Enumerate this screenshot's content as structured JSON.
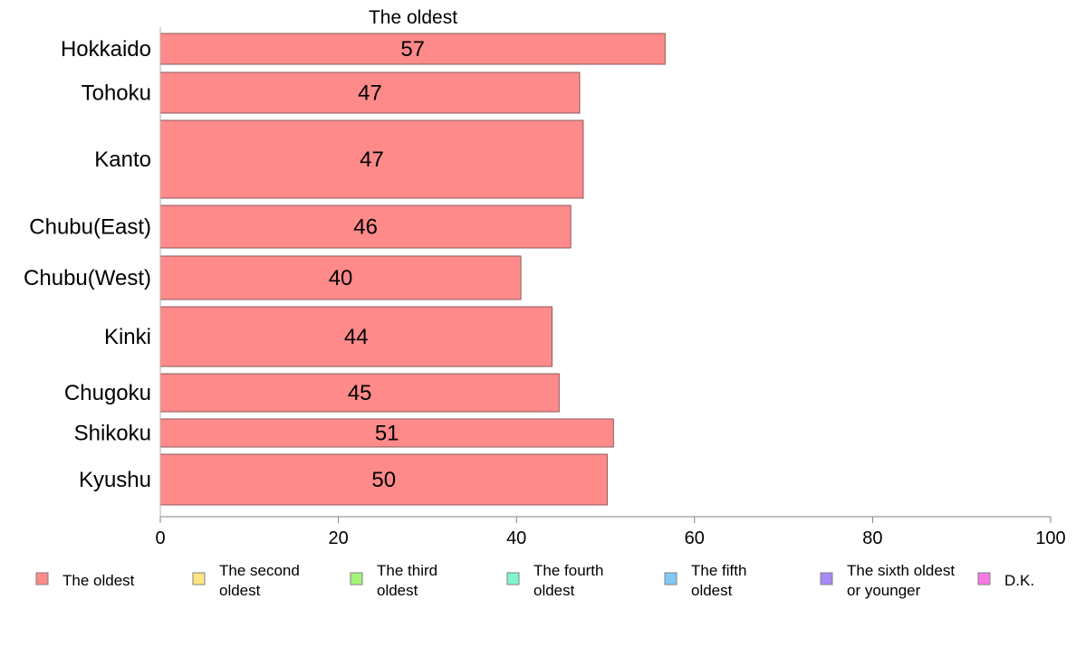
{
  "chart_data": {
    "type": "bar",
    "orientation": "horizontal",
    "categories": [
      "Hokkaido",
      "Tohoku",
      "Kanto",
      "Chubu(East)",
      "Chubu(West)",
      "Kinki",
      "Chugoku",
      "Shikoku",
      "Kyushu"
    ],
    "series": [
      {
        "name": "The oldest",
        "color": "#ff8a8a",
        "values": [
          56.7,
          47.1,
          47.5,
          46.1,
          40.5,
          44.0,
          44.8,
          50.9,
          50.2
        ],
        "labels": [
          "57",
          "47",
          "47",
          "46",
          "40",
          "44",
          "45",
          "51",
          "50"
        ]
      }
    ],
    "xlim": [
      0,
      100
    ],
    "xticks": [
      0,
      20,
      40,
      60,
      80,
      100
    ],
    "xtick_labels": [
      "0",
      "20",
      "40",
      "60",
      "80",
      "100"
    ],
    "grid": false,
    "legend_position": "bottom",
    "legend": [
      {
        "lines": [
          "The oldest"
        ],
        "color": "#ff8a8a"
      },
      {
        "lines": [
          "The second",
          "oldest"
        ],
        "color": "#ffe680"
      },
      {
        "lines": [
          "The third",
          "oldest"
        ],
        "color": "#a3f57a"
      },
      {
        "lines": [
          "The fourth",
          "oldest"
        ],
        "color": "#80f5d0"
      },
      {
        "lines": [
          "The fifth",
          "oldest"
        ],
        "color": "#80c8f5"
      },
      {
        "lines": [
          "The sixth oldest",
          "or younger"
        ],
        "color": "#a68af5"
      },
      {
        "lines": [
          "D.K."
        ],
        "color": "#f57ae6"
      }
    ]
  }
}
